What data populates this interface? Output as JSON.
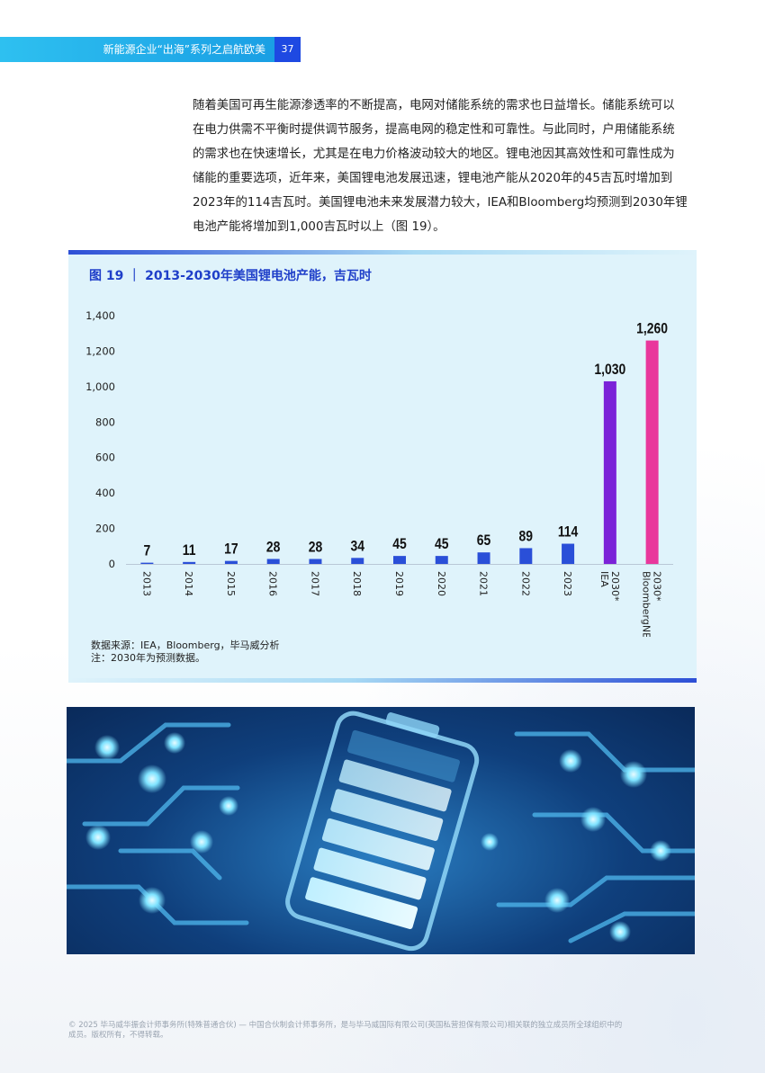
{
  "header": {
    "title": "新能源企业“出海”系列之启航欧美",
    "page_number": "37"
  },
  "body_lines": [
    "随着美国可再生能源渗透率的不断提高，电网对储能系统的需求也日益增长。储能系统可以",
    "在电力供需不平衡时提供调节服务，提高电网的稳定性和可靠性。与此同时，户用储能系统",
    "的需求也在快速增长，尤其是在电力价格波动较大的地区。锂电池因其高效性和可靠性成为",
    "储能的重要选项，近年来，美国锂电池发展迅速，锂电池产能从2020年的45吉瓦时增加到",
    "2023年的114吉瓦时。美国锂电池未来发展潜力较大，IEA和Bloomberg均预测到2030年锂",
    "电池产能将增加到1,000吉瓦时以上（图 19）。"
  ],
  "chart_data": {
    "type": "bar",
    "title": "图 19 ｜ 2013-2030年美国锂电池产能，吉瓦时",
    "categories": [
      "2013",
      "2014",
      "2015",
      "2016",
      "2017",
      "2018",
      "2019",
      "2020",
      "2021",
      "2022",
      "2023",
      "2030* IEA",
      "2030* BloombergNEF"
    ],
    "values": [
      7,
      11,
      17,
      28,
      28,
      34,
      45,
      45,
      65,
      89,
      114,
      1030,
      1260
    ],
    "value_labels": [
      "7",
      "11",
      "17",
      "28",
      "28",
      "34",
      "45",
      "45",
      "65",
      "89",
      "114",
      "1,030",
      "1,260"
    ],
    "y_ticks": [
      0,
      200,
      400,
      600,
      800,
      1000,
      1200,
      1400
    ],
    "y_tick_labels": [
      "0",
      "200",
      "400",
      "600",
      "800",
      "1,000",
      "1,200",
      "1,400"
    ],
    "ylim": [
      0,
      1400
    ],
    "grid": false,
    "bar_colors": [
      "#2a4fd8",
      "#2a4fd8",
      "#2a4fd8",
      "#2a4fd8",
      "#2a4fd8",
      "#2a4fd8",
      "#2a4fd8",
      "#2a4fd8",
      "#2a4fd8",
      "#2a4fd8",
      "#2a4fd8",
      "#7b22d8",
      "#e9379c"
    ]
  },
  "chart_notes": {
    "source": "数据来源：IEA，Bloomberg，毕马威分析",
    "note": "注：2030年为预测数据。"
  },
  "footer": {
    "line1": "© 2025 毕马威华振会计师事务所(特殊普通合伙) — 中国合伙制会计师事务所，是与毕马威国际有限公司(英国私营担保有限公司)相关联的独立成员所全球组织中的",
    "line2": "成员。版权所有，不得转载。"
  },
  "colors": {
    "accent_blue": "#1f3fc9",
    "header_cyan": "#2ec0f0",
    "chart_bg": "#dff3fb"
  }
}
